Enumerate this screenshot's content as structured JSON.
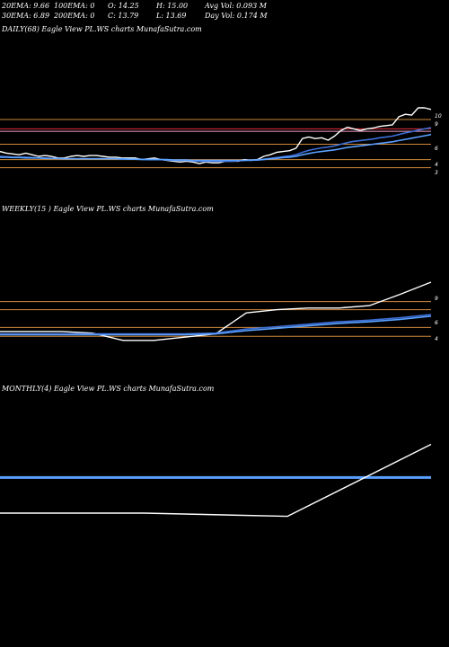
{
  "header": {
    "ema20": "20EMA: 9.66",
    "ema100": "100EMA: 0",
    "open": "O: 14.25",
    "high": "H: 15.00",
    "avg_vol": "Avg Vol: 0.093  M",
    "ema30": "30EMA: 6.89",
    "ema200": "200EMA: 0",
    "close": "C: 13.79",
    "low": "L: 13.69",
    "day_vol": "Day Vol: 0.174  M"
  },
  "colors": {
    "background": "#000000",
    "price_line": "#ffffff",
    "ema_line": "#3d6fd6",
    "ema_line_alt": "#5aa0ff",
    "level_line": "#d08a3c",
    "red_level": "#e0303c",
    "pink_level": "#f0a0c8"
  },
  "chart_data": [
    {
      "type": "line",
      "panel_label": "DAILY(68) Eagle  View  PL.WS charts MunafaSutra.com",
      "ylim": [
        2,
        11
      ],
      "y_ticks": [
        "10",
        "9",
        "6",
        "4",
        "3"
      ],
      "levels": [
        {
          "value": 9.55,
          "color": "#d08a3c"
        },
        {
          "value": 8.4,
          "color": "#e0303c"
        },
        {
          "value": 8.1,
          "color": "#f0a0c8"
        },
        {
          "value": 6.5,
          "color": "#d08a3c"
        },
        {
          "value": 4.6,
          "color": "#d08a3c"
        },
        {
          "value": 3.6,
          "color": "#d08a3c"
        }
      ],
      "series": [
        {
          "role": "price",
          "color": "#ffffff",
          "values": [
            5.6,
            5.4,
            5.3,
            5.2,
            5.4,
            5.2,
            5.0,
            5.1,
            5.0,
            4.8,
            4.8,
            5.0,
            5.1,
            5.0,
            5.1,
            5.1,
            5.0,
            4.9,
            4.9,
            4.8,
            4.8,
            4.8,
            4.6,
            4.7,
            4.8,
            4.6,
            4.5,
            4.4,
            4.3,
            4.4,
            4.3,
            4.1,
            4.3,
            4.2,
            4.2,
            4.4,
            4.4,
            4.4,
            4.6,
            4.5,
            4.6,
            5.0,
            5.2,
            5.5,
            5.6,
            5.7,
            6.0,
            7.2,
            7.4,
            7.2,
            7.3,
            7.0,
            7.5,
            8.2,
            8.6,
            8.4,
            8.2,
            8.4,
            8.5,
            8.7,
            8.8,
            8.9,
            9.9,
            10.2,
            10.1,
            11.0,
            11.0,
            10.8
          ]
        },
        {
          "role": "ema",
          "color": "#3d6fd6",
          "values": [
            5.0,
            4.95,
            4.9,
            4.9,
            4.9,
            4.85,
            4.8,
            4.8,
            4.75,
            4.75,
            4.7,
            4.7,
            4.7,
            4.7,
            4.7,
            4.7,
            4.7,
            4.7,
            4.7,
            4.65,
            4.65,
            4.65,
            4.6,
            4.6,
            4.6,
            4.6,
            4.55,
            4.5,
            4.5,
            4.5,
            4.45,
            4.4,
            4.4,
            4.4,
            4.4,
            4.4,
            4.4,
            4.45,
            4.5,
            4.5,
            4.55,
            4.65,
            4.75,
            4.85,
            4.95,
            5.05,
            5.2,
            5.5,
            5.75,
            5.9,
            6.05,
            6.15,
            6.3,
            6.5,
            6.7,
            6.85,
            6.95,
            7.05,
            7.15,
            7.3,
            7.4,
            7.5,
            7.7,
            7.9,
            8.05,
            8.25,
            8.4,
            8.55
          ]
        },
        {
          "role": "ema_alt",
          "color": "#5aa0ff",
          "values": [
            4.9,
            4.9,
            4.85,
            4.85,
            4.8,
            4.8,
            4.8,
            4.75,
            4.75,
            4.75,
            4.7,
            4.7,
            4.7,
            4.7,
            4.7,
            4.7,
            4.7,
            4.7,
            4.7,
            4.7,
            4.65,
            4.65,
            4.65,
            4.6,
            4.6,
            4.6,
            4.6,
            4.55,
            4.55,
            4.55,
            4.5,
            4.5,
            4.5,
            4.5,
            4.5,
            4.5,
            4.5,
            4.5,
            4.5,
            4.55,
            4.55,
            4.6,
            4.7,
            4.75,
            4.85,
            4.9,
            5.0,
            5.2,
            5.35,
            5.5,
            5.6,
            5.7,
            5.8,
            5.95,
            6.1,
            6.2,
            6.3,
            6.4,
            6.5,
            6.6,
            6.7,
            6.8,
            6.95,
            7.1,
            7.25,
            7.4,
            7.55,
            7.7
          ]
        }
      ]
    },
    {
      "type": "line",
      "panel_label": "WEEKLY(15                  ) Eagle  View  PL.WS charts MunafaSutra.com",
      "ylim": [
        2,
        11
      ],
      "y_ticks": [
        "9",
        "6",
        "4"
      ],
      "levels": [
        {
          "value": 8.6,
          "color": "#d08a3c"
        },
        {
          "value": 7.6,
          "color": "#d08a3c"
        },
        {
          "value": 5.4,
          "color": "#d08a3c"
        },
        {
          "value": 4.3,
          "color": "#d08a3c"
        }
      ],
      "series": [
        {
          "role": "price",
          "color": "#ffffff",
          "values": [
            4.9,
            4.9,
            4.9,
            4.7,
            3.8,
            3.8,
            4.2,
            4.6,
            7.2,
            7.6,
            7.8,
            7.8,
            8.1,
            9.5,
            11.0
          ]
        },
        {
          "role": "ema",
          "color": "#3d6fd6",
          "values": [
            4.6,
            4.6,
            4.6,
            4.6,
            4.6,
            4.6,
            4.6,
            4.7,
            5.2,
            5.5,
            5.8,
            6.1,
            6.3,
            6.6,
            7.0
          ]
        },
        {
          "role": "ema_alt",
          "color": "#5aa0ff",
          "values": [
            4.5,
            4.5,
            4.5,
            4.5,
            4.5,
            4.5,
            4.5,
            4.6,
            5.0,
            5.3,
            5.6,
            5.9,
            6.1,
            6.4,
            6.8
          ]
        }
      ]
    },
    {
      "type": "line",
      "panel_label": "MONTHLY(4) Eagle  View  PL.WS charts MunafaSutra.com",
      "ylim": [
        2,
        16
      ],
      "y_ticks": [],
      "levels": [
        {
          "value": 9.4,
          "color": "#5aa0ff"
        }
      ],
      "series": [
        {
          "role": "price",
          "color": "#ffffff",
          "values": [
            5.0,
            5.0,
            4.6,
            13.5
          ]
        }
      ]
    }
  ]
}
